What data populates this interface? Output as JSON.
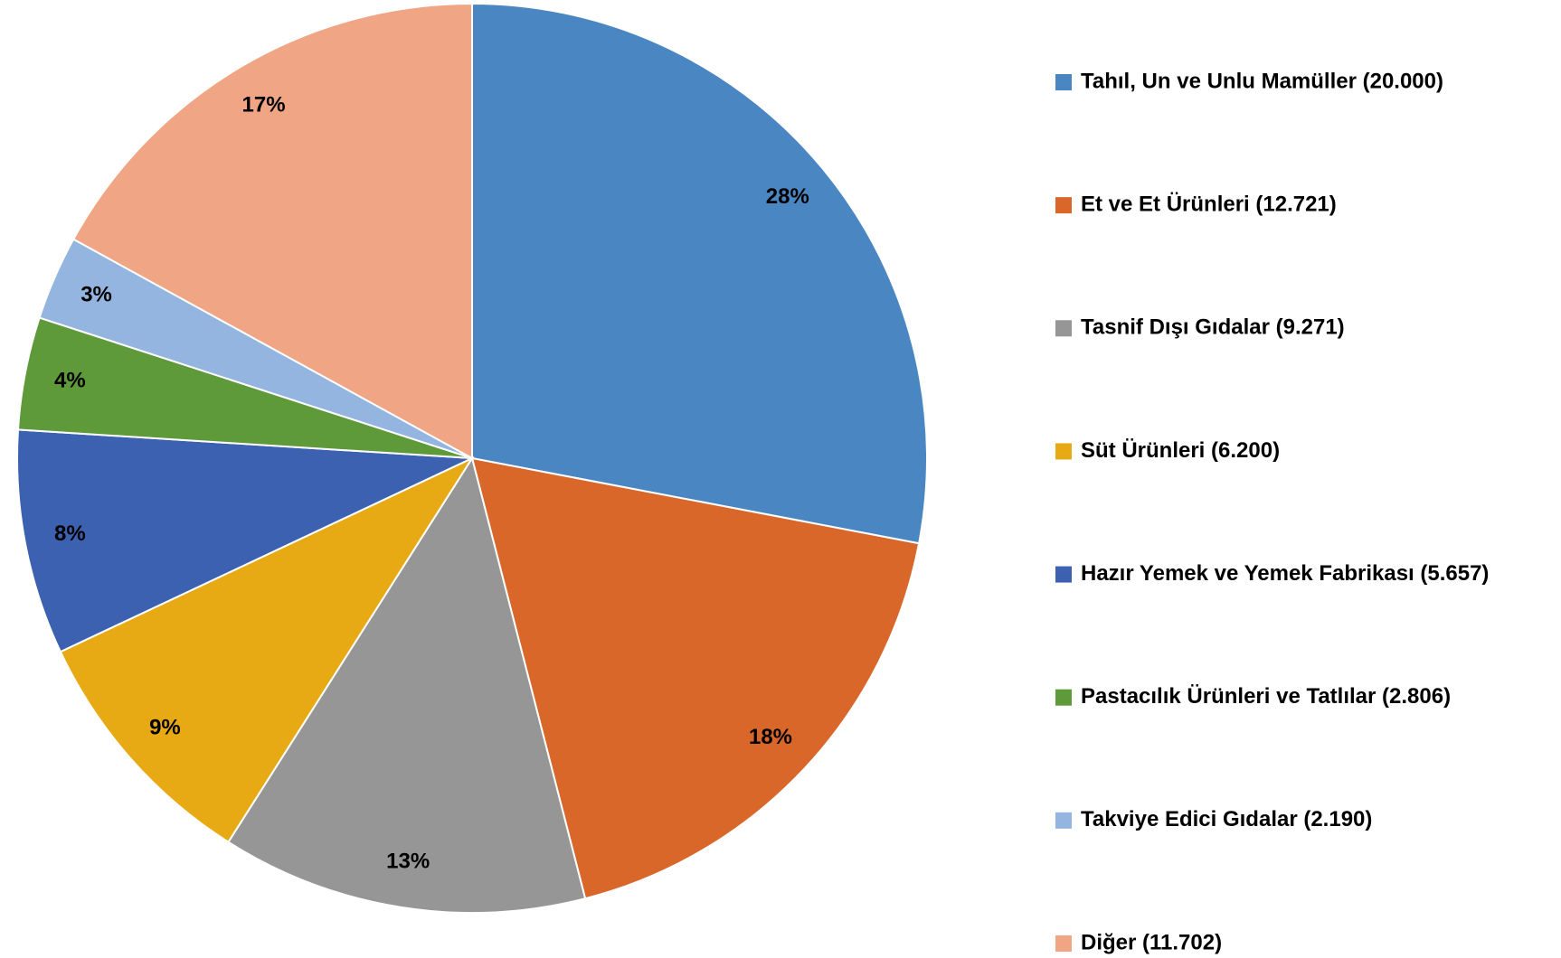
{
  "chart_data": {
    "type": "pie",
    "categories": [
      "Tahıl, Un ve Unlu Mamüller (20.000)",
      "Et ve Et Ürünleri (12.721)",
      "Tasnif Dışı Gıdalar (9.271)",
      "Süt Ürünleri (6.200)",
      "Hazır Yemek ve Yemek Fabrikası (5.657)",
      "Pastacılık Ürünleri ve Tatlılar (2.806)",
      "Takviye Edici Gıdalar (2.190)",
      "Diğer (11.702)"
    ],
    "values": [
      28,
      18,
      13,
      9,
      8,
      4,
      3,
      17
    ],
    "value_labels": [
      "28%",
      "18%",
      "13%",
      "9%",
      "8%",
      "4%",
      "3%",
      "17%"
    ],
    "colors": [
      "#4a86c2",
      "#d9672a",
      "#969696",
      "#e8aa14",
      "#3c61b0",
      "#5e9a3a",
      "#93b5e0",
      "#f0a585"
    ],
    "legend": "right"
  }
}
